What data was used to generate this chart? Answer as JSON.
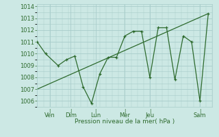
{
  "xlabel": "Pression niveau de la mer( hPa )",
  "ylim": [
    1005.5,
    1014.2
  ],
  "xlim": [
    0,
    21
  ],
  "bg_color": "#cce8e4",
  "grid_color": "#a8ccca",
  "line_color": "#2d6a2d",
  "yticks": [
    1006,
    1007,
    1008,
    1009,
    1010,
    1011,
    1012,
    1013,
    1014
  ],
  "xtick_positions": [
    1.5,
    4.0,
    7.0,
    10.5,
    13.5,
    19.5
  ],
  "xtick_labels": [
    "Ven",
    "Dim",
    "Lun",
    "Mer",
    "Jeu",
    "Sam"
  ],
  "series1_x": [
    0.0,
    1.0,
    2.5,
    3.5,
    4.5,
    5.5,
    6.5,
    7.5,
    8.5,
    9.5,
    10.5,
    11.5,
    12.5,
    13.5,
    14.5,
    15.5,
    16.5,
    17.5,
    18.5,
    19.5,
    20.5
  ],
  "series1_y": [
    1011.0,
    1010.0,
    1009.0,
    1009.5,
    1009.8,
    1007.2,
    1005.8,
    1008.3,
    1009.7,
    1009.7,
    1011.5,
    1011.9,
    1011.9,
    1008.0,
    1012.2,
    1012.2,
    1007.8,
    1011.5,
    1011.0,
    1006.0,
    1013.4
  ],
  "trend_x": [
    0.0,
    20.5
  ],
  "trend_y": [
    1007.0,
    1013.4
  ],
  "vlines": [
    1.5,
    4.0,
    7.0,
    10.5,
    13.5,
    19.5
  ]
}
